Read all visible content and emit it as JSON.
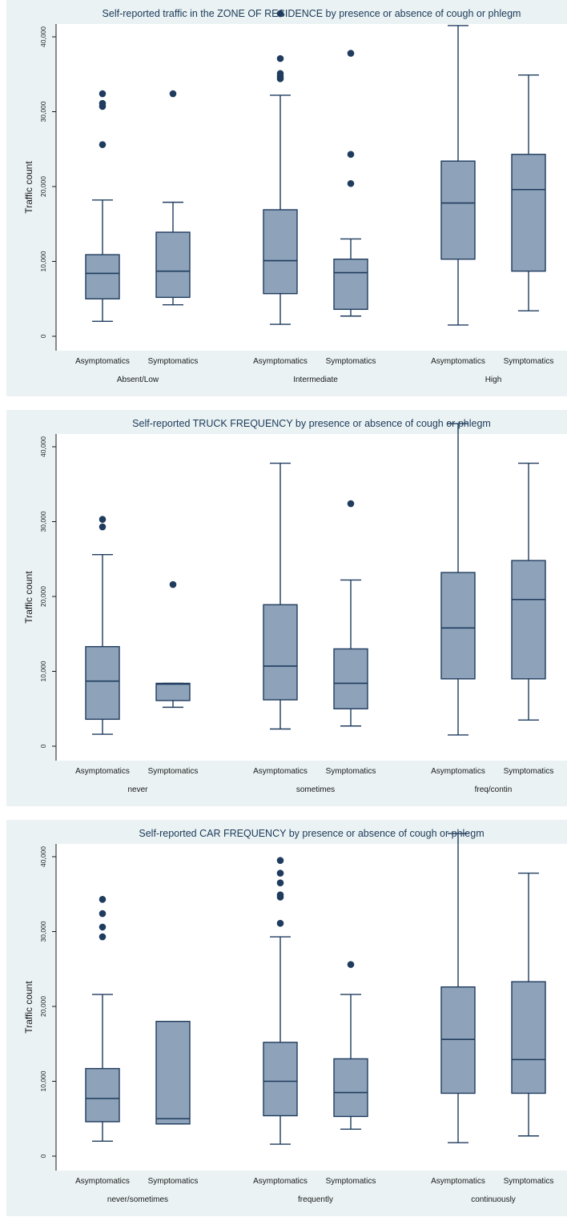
{
  "colors": {
    "panel_bg": "#eaf2f3",
    "plot_bg": "#ffffff",
    "box_fill": "#8ea3b9",
    "box_stroke": "#1f3b5e",
    "outlier": "#1f3b5e",
    "title": "#1c3a5a"
  },
  "chart_data": [
    {
      "type": "boxplot",
      "title": "Self-reported traffic in the ZONE OF RESIDENCE by presence or absence of cough or phlegm",
      "ylabel": "Traffic count",
      "xlabel": "",
      "ylim": [
        0,
        45000
      ],
      "yticks": [
        0,
        10000,
        20000,
        30000,
        40000
      ],
      "ytick_labels": [
        "0",
        "10,000",
        "20,000",
        "30,000",
        "40,000"
      ],
      "grid": false,
      "groups": [
        {
          "label": "Absent/Low",
          "boxes": [
            {
              "label": "Asymptomatics",
              "whisker_low": 2000,
              "q1": 5000,
              "median": 8400,
              "q3": 10900,
              "whisker_high": 18200,
              "outliers": [
                25600,
                30700,
                31100,
                32400
              ]
            },
            {
              "label": "Symptomatics",
              "whisker_low": 4200,
              "q1": 5200,
              "median": 8700,
              "q3": 13900,
              "whisker_high": 17900,
              "outliers": [
                32400
              ]
            }
          ]
        },
        {
          "label": "Intermediate",
          "boxes": [
            {
              "label": "Asymptomatics",
              "whisker_low": 1600,
              "q1": 5700,
              "median": 10100,
              "q3": 16900,
              "whisker_high": 32200,
              "outliers": [
                34400,
                34700,
                35100,
                37100,
                43100
              ]
            },
            {
              "label": "Symptomatics",
              "whisker_low": 2700,
              "q1": 3600,
              "median": 8500,
              "q3": 10300,
              "whisker_high": 13000,
              "outliers": [
                20400,
                24300,
                37800
              ]
            }
          ]
        },
        {
          "label": "High",
          "boxes": [
            {
              "label": "Asymptomatics",
              "whisker_low": 1500,
              "q1": 10300,
              "median": 17800,
              "q3": 23400,
              "whisker_high": 41500,
              "outliers": []
            },
            {
              "label": "Symptomatics",
              "whisker_low": 3400,
              "q1": 8700,
              "median": 19600,
              "q3": 24300,
              "whisker_high": 34900,
              "outliers": []
            }
          ]
        }
      ]
    },
    {
      "type": "boxplot",
      "title": "Self-reported TRUCK FREQUENCY by presence or absence of cough or phlegm",
      "ylabel": "Traffic count",
      "xlabel": "",
      "ylim": [
        0,
        45000
      ],
      "yticks": [
        0,
        10000,
        20000,
        30000,
        40000
      ],
      "ytick_labels": [
        "0",
        "10,000",
        "20,000",
        "30,000",
        "40,000"
      ],
      "grid": false,
      "groups": [
        {
          "label": "never",
          "boxes": [
            {
              "label": "Asymptomatics",
              "whisker_low": 1600,
              "q1": 3600,
              "median": 8700,
              "q3": 13300,
              "whisker_high": 25600,
              "outliers": [
                29300,
                30300
              ]
            },
            {
              "label": "Symptomatics",
              "whisker_low": 5200,
              "q1": 6100,
              "median": 8300,
              "q3": 8400,
              "whisker_high": 8400,
              "outliers": [
                21600
              ]
            }
          ]
        },
        {
          "label": "sometimes",
          "boxes": [
            {
              "label": "Asymptomatics",
              "whisker_low": 2300,
              "q1": 6200,
              "median": 10700,
              "q3": 18900,
              "whisker_high": 37800,
              "outliers": []
            },
            {
              "label": "Symptomatics",
              "whisker_low": 2700,
              "q1": 5000,
              "median": 8400,
              "q3": 13000,
              "whisker_high": 22200,
              "outliers": [
                32400
              ]
            }
          ]
        },
        {
          "label": "freq/contin",
          "boxes": [
            {
              "label": "Asymptomatics",
              "whisker_low": 1500,
              "q1": 9000,
              "median": 15800,
              "q3": 23200,
              "whisker_high": 43100,
              "outliers": []
            },
            {
              "label": "Symptomatics",
              "whisker_low": 3500,
              "q1": 9000,
              "median": 19600,
              "q3": 24800,
              "whisker_high": 37800,
              "outliers": []
            }
          ]
        }
      ]
    },
    {
      "type": "boxplot",
      "title": "Self-reported CAR FREQUENCY by presence or absence of cough or phlegm",
      "ylabel": "Traffic count",
      "xlabel": "",
      "ylim": [
        0,
        45000
      ],
      "yticks": [
        0,
        10000,
        20000,
        30000,
        40000
      ],
      "ytick_labels": [
        "0",
        "10,000",
        "20,000",
        "30,000",
        "40,000"
      ],
      "grid": false,
      "groups": [
        {
          "label": "never/sometimes",
          "boxes": [
            {
              "label": "Asymptomatics",
              "whisker_low": 2000,
              "q1": 4600,
              "median": 7700,
              "q3": 11700,
              "whisker_high": 21600,
              "outliers": [
                29300,
                30600,
                32400,
                34300
              ]
            },
            {
              "label": "Symptomatics",
              "whisker_low": 4300,
              "q1": 4300,
              "median": 5000,
              "q3": 18000,
              "whisker_high": 18000,
              "outliers": []
            }
          ]
        },
        {
          "label": "frequently",
          "boxes": [
            {
              "label": "Asymptomatics",
              "whisker_low": 1600,
              "q1": 5400,
              "median": 10000,
              "q3": 15200,
              "whisker_high": 29300,
              "outliers": [
                31100,
                34600,
                34900,
                36500,
                37800,
                39500
              ]
            },
            {
              "label": "Symptomatics",
              "whisker_low": 3600,
              "q1": 5300,
              "median": 8500,
              "q3": 13000,
              "whisker_high": 21600,
              "outliers": [
                25600
              ]
            }
          ]
        },
        {
          "label": "continuously",
          "boxes": [
            {
              "label": "Asymptomatics",
              "whisker_low": 1800,
              "q1": 8400,
              "median": 15600,
              "q3": 22600,
              "whisker_high": 43100,
              "outliers": []
            },
            {
              "label": "Symptomatics",
              "whisker_low": 2700,
              "q1": 8400,
              "median": 12900,
              "q3": 23300,
              "whisker_high": 37800,
              "outliers": []
            }
          ]
        }
      ]
    }
  ]
}
